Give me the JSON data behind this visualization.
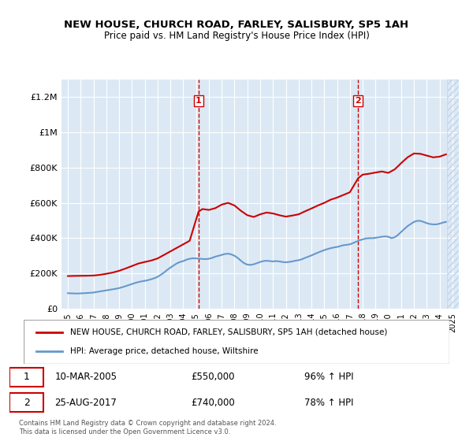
{
  "title": "NEW HOUSE, CHURCH ROAD, FARLEY, SALISBURY, SP5 1AH",
  "subtitle": "Price paid vs. HM Land Registry's House Price Index (HPI)",
  "background_color": "#dce9f5",
  "plot_bg_color": "#dce9f5",
  "hatch_color": "#c0d4e8",
  "red_line_color": "#cc0000",
  "blue_line_color": "#6699cc",
  "vline_color": "#cc0000",
  "legend_label_red": "NEW HOUSE, CHURCH ROAD, FARLEY, SALISBURY, SP5 1AH (detached house)",
  "legend_label_blue": "HPI: Average price, detached house, Wiltshire",
  "transaction1_label": "1",
  "transaction1_date": "10-MAR-2005",
  "transaction1_price": "£550,000",
  "transaction1_pct": "96% ↑ HPI",
  "transaction1_x": 2005.19,
  "transaction2_label": "2",
  "transaction2_date": "25-AUG-2017",
  "transaction2_price": "£740,000",
  "transaction2_pct": "78% ↑ HPI",
  "transaction2_x": 2017.65,
  "ylim_min": 0,
  "ylim_max": 1300000,
  "yticks": [
    0,
    200000,
    400000,
    600000,
    800000,
    1000000,
    1200000
  ],
  "ytick_labels": [
    "£0",
    "£200K",
    "£400K",
    "£600K",
    "£800K",
    "£1M",
    "£1.2M"
  ],
  "xmin": 1994.5,
  "xmax": 2025.5,
  "footer": "Contains HM Land Registry data © Crown copyright and database right 2024.\nThis data is licensed under the Open Government Licence v3.0.",
  "hpi_data": {
    "years": [
      1995.0,
      1995.25,
      1995.5,
      1995.75,
      1996.0,
      1996.25,
      1996.5,
      1996.75,
      1997.0,
      1997.25,
      1997.5,
      1997.75,
      1998.0,
      1998.25,
      1998.5,
      1998.75,
      1999.0,
      1999.25,
      1999.5,
      1999.75,
      2000.0,
      2000.25,
      2000.5,
      2000.75,
      2001.0,
      2001.25,
      2001.5,
      2001.75,
      2002.0,
      2002.25,
      2002.5,
      2002.75,
      2003.0,
      2003.25,
      2003.5,
      2003.75,
      2004.0,
      2004.25,
      2004.5,
      2004.75,
      2005.0,
      2005.25,
      2005.5,
      2005.75,
      2006.0,
      2006.25,
      2006.5,
      2006.75,
      2007.0,
      2007.25,
      2007.5,
      2007.75,
      2008.0,
      2008.25,
      2008.5,
      2008.75,
      2009.0,
      2009.25,
      2009.5,
      2009.75,
      2010.0,
      2010.25,
      2010.5,
      2010.75,
      2011.0,
      2011.25,
      2011.5,
      2011.75,
      2012.0,
      2012.25,
      2012.5,
      2012.75,
      2013.0,
      2013.25,
      2013.5,
      2013.75,
      2014.0,
      2014.25,
      2014.5,
      2014.75,
      2015.0,
      2015.25,
      2015.5,
      2015.75,
      2016.0,
      2016.25,
      2016.5,
      2016.75,
      2017.0,
      2017.25,
      2017.5,
      2017.75,
      2018.0,
      2018.25,
      2018.5,
      2018.75,
      2019.0,
      2019.25,
      2019.5,
      2019.75,
      2020.0,
      2020.25,
      2020.5,
      2020.75,
      2021.0,
      2021.25,
      2021.5,
      2021.75,
      2022.0,
      2022.25,
      2022.5,
      2022.75,
      2023.0,
      2023.25,
      2023.5,
      2023.75,
      2024.0,
      2024.25,
      2024.5
    ],
    "values": [
      88000,
      87000,
      86500,
      86000,
      87000,
      88000,
      89000,
      90000,
      92000,
      95000,
      98000,
      101000,
      104000,
      107000,
      110000,
      113000,
      117000,
      122000,
      128000,
      134000,
      140000,
      146000,
      151000,
      155000,
      158000,
      162000,
      167000,
      173000,
      181000,
      192000,
      205000,
      220000,
      233000,
      245000,
      257000,
      265000,
      270000,
      278000,
      283000,
      286000,
      285000,
      284000,
      282000,
      281000,
      283000,
      288000,
      295000,
      300000,
      305000,
      310000,
      312000,
      308000,
      300000,
      288000,
      272000,
      258000,
      250000,
      248000,
      252000,
      258000,
      265000,
      270000,
      272000,
      270000,
      268000,
      270000,
      268000,
      265000,
      263000,
      265000,
      268000,
      272000,
      275000,
      280000,
      288000,
      295000,
      302000,
      310000,
      318000,
      325000,
      332000,
      338000,
      343000,
      347000,
      350000,
      355000,
      360000,
      362000,
      365000,
      372000,
      380000,
      388000,
      393000,
      398000,
      400000,
      400000,
      402000,
      405000,
      408000,
      410000,
      408000,
      400000,
      405000,
      418000,
      435000,
      452000,
      468000,
      480000,
      492000,
      498000,
      498000,
      492000,
      485000,
      480000,
      478000,
      478000,
      482000,
      488000,
      492000
    ]
  },
  "property_data": {
    "years": [
      1995.0,
      1995.5,
      1996.0,
      1996.5,
      1997.0,
      1997.5,
      1998.0,
      1998.5,
      1999.0,
      1999.5,
      2000.0,
      2000.5,
      2001.0,
      2001.5,
      2002.0,
      2002.5,
      2003.0,
      2003.5,
      2004.0,
      2004.5,
      2005.19,
      2005.5,
      2006.0,
      2006.5,
      2007.0,
      2007.5,
      2008.0,
      2008.5,
      2009.0,
      2009.5,
      2010.0,
      2010.5,
      2011.0,
      2011.5,
      2012.0,
      2012.5,
      2013.0,
      2013.5,
      2014.0,
      2014.5,
      2015.0,
      2015.5,
      2016.0,
      2016.5,
      2017.0,
      2017.65,
      2018.0,
      2018.5,
      2019.0,
      2019.5,
      2020.0,
      2020.5,
      2021.0,
      2021.5,
      2022.0,
      2022.5,
      2023.0,
      2023.5,
      2024.0,
      2024.5
    ],
    "values": [
      185000,
      186000,
      186500,
      187000,
      188000,
      192000,
      198000,
      205000,
      215000,
      228000,
      242000,
      256000,
      265000,
      273000,
      285000,
      305000,
      325000,
      345000,
      365000,
      385000,
      550000,
      565000,
      560000,
      570000,
      590000,
      600000,
      585000,
      555000,
      530000,
      520000,
      535000,
      545000,
      540000,
      530000,
      522000,
      528000,
      535000,
      552000,
      568000,
      585000,
      600000,
      618000,
      630000,
      645000,
      660000,
      740000,
      760000,
      765000,
      772000,
      778000,
      770000,
      790000,
      825000,
      858000,
      880000,
      878000,
      868000,
      858000,
      862000,
      875000
    ]
  }
}
